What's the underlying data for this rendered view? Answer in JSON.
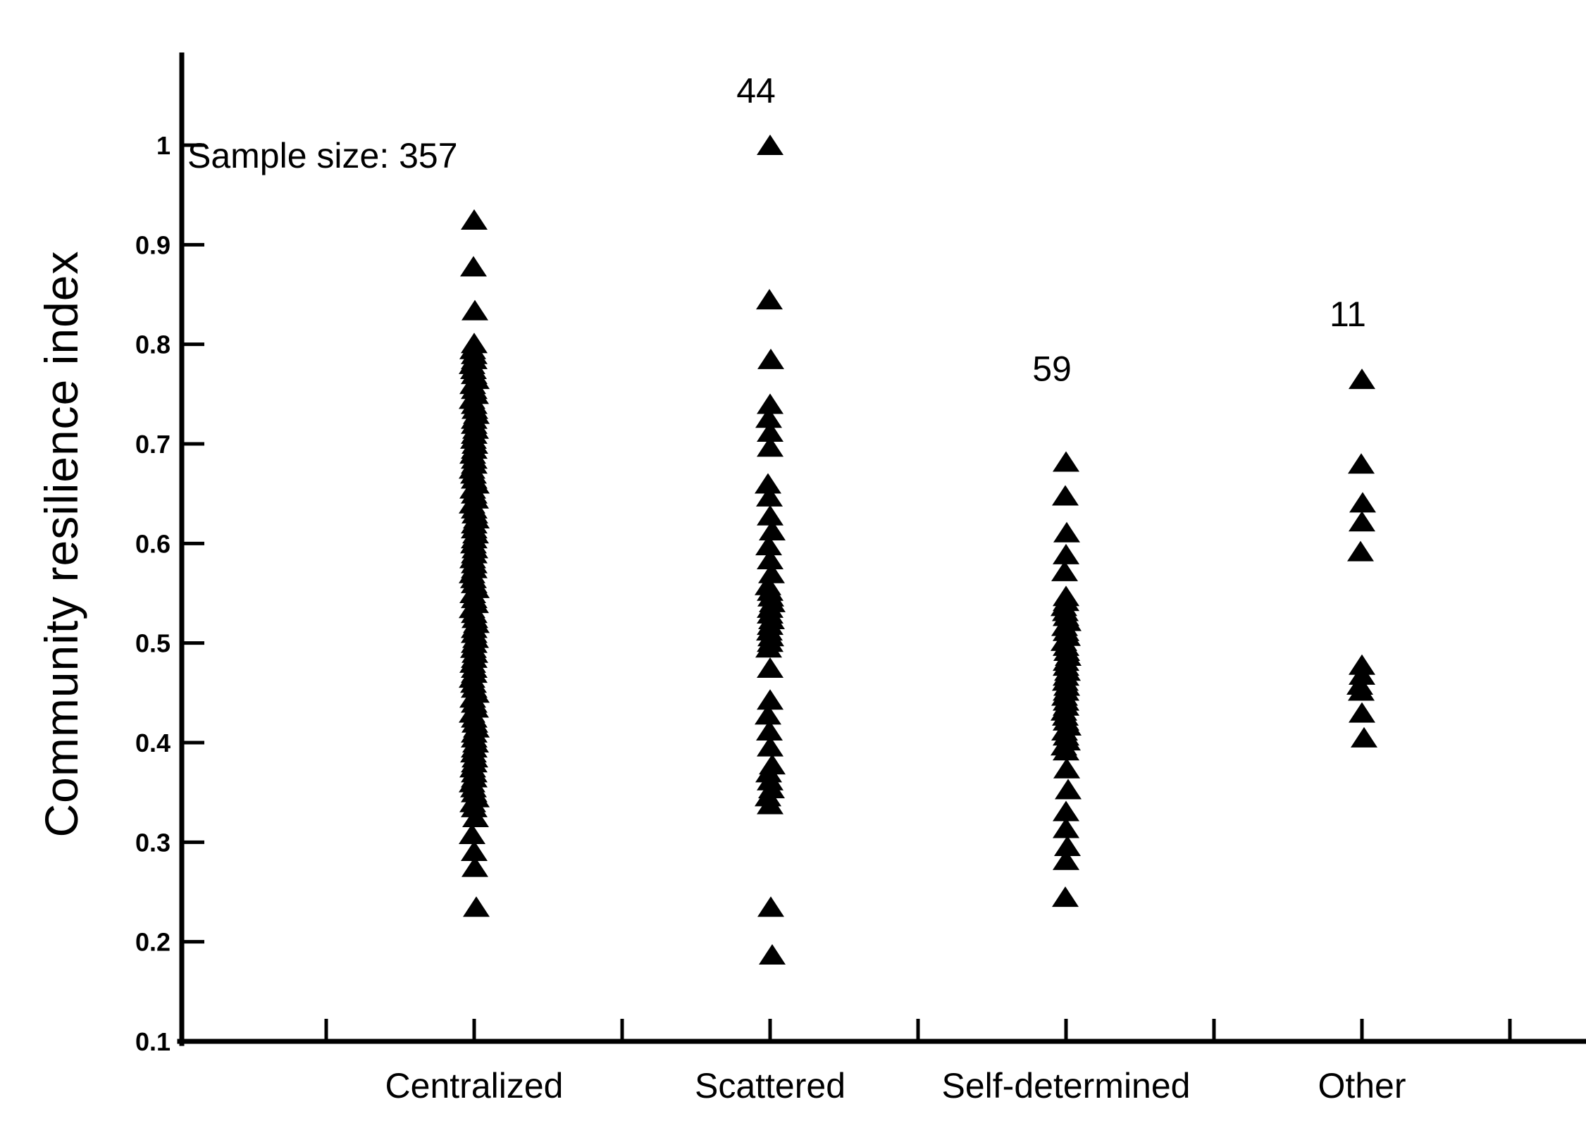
{
  "figure": {
    "background_color": "#ffffff",
    "ink_color": "#000000"
  },
  "chart_data": {
    "type": "scatter",
    "subtype": "strip-plot",
    "title": "",
    "xlabel": "",
    "ylabel": "Community resilience index",
    "annotation": "Sample size: 357",
    "sample_size_total": 357,
    "marker": "filled-up-triangle",
    "marker_color": "#000000",
    "grid": false,
    "legend": false,
    "ylim": [
      0.1,
      1.06
    ],
    "y_ticks": [
      1,
      0.9,
      0.8,
      0.7,
      0.6,
      0.5,
      0.4,
      0.3,
      0.2,
      0.1
    ],
    "y_tick_labels": [
      "1",
      "0.9",
      "0.8",
      "0.7",
      "0.6",
      "0.5",
      "0.4",
      "0.3",
      "0.2",
      "0.1"
    ],
    "x_minor_ticks_between_categories": true,
    "categories": [
      "Centralized",
      "Scattered",
      "Self-determined",
      "Other"
    ],
    "series": [
      {
        "name": "Centralized",
        "count_label": "",
        "points": [
          0.925,
          0.878,
          0.834,
          0.801,
          0.325,
          0.308,
          0.291,
          0.275,
          0.235
        ],
        "dense_bands": [
          {
            "from": 0.335,
            "to": 0.795,
            "step": 0.005
          }
        ]
      },
      {
        "name": "Scattered",
        "count_label": "44",
        "points": [
          1.0,
          0.845,
          0.785,
          0.74,
          0.726,
          0.712,
          0.697,
          0.66,
          0.647,
          0.628,
          0.613,
          0.598,
          0.584,
          0.57,
          0.475,
          0.443,
          0.428,
          0.412,
          0.396,
          0.235,
          0.187
        ],
        "dense_bands": [
          {
            "from": 0.49,
            "to": 0.558,
            "step": 0.0057
          },
          {
            "from": 0.338,
            "to": 0.378,
            "step": 0.008
          }
        ]
      },
      {
        "name": "Self-determined",
        "count_label": "59",
        "points": [
          0.682,
          0.648,
          0.611,
          0.589,
          0.572,
          0.374,
          0.353,
          0.331,
          0.314,
          0.296,
          0.282,
          0.245
        ],
        "dense_bands": [
          {
            "from": 0.39,
            "to": 0.547,
            "step": 0.005
          }
        ]
      },
      {
        "name": "Other",
        "count_label": "11",
        "points": [
          0.765,
          0.68,
          0.641,
          0.622,
          0.592,
          0.478,
          0.468,
          0.458,
          0.452,
          0.43,
          0.405
        ],
        "dense_bands": []
      }
    ]
  }
}
